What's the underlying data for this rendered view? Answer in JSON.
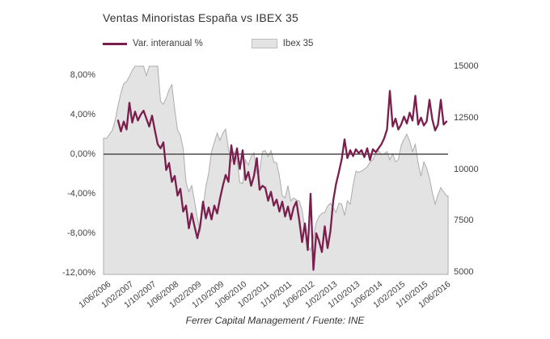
{
  "title": "Ventas Minoristas España vs IBEX 35",
  "footer": "Ferrer Capital Management / Fuente: INE",
  "colors": {
    "line": "#7A1F4D",
    "area_fill": "#E3E3E3",
    "area_border": "#ACACAC",
    "zero_line": "#4D4D4D",
    "text": "#404040"
  },
  "legend": {
    "items": [
      {
        "label": "Var. interanual %",
        "swatch": "line"
      },
      {
        "label": "Ibex 35",
        "swatch": "area"
      }
    ]
  },
  "chart_data": {
    "type": "line+area",
    "title": "Ventas Minoristas España vs IBEX 35",
    "x_tick_labels": [
      "1/06/2006",
      "1/02/2007",
      "1/10/2007",
      "1/06/2008",
      "1/02/2009",
      "1/10/2009",
      "1/06/2010",
      "1/02/2011",
      "1/10/2011",
      "1/06/2012",
      "1/02/2013",
      "1/10/2013",
      "1/06/2014",
      "1/02/2015",
      "1/10/2015",
      "1/06/2016"
    ],
    "y_left_axis": {
      "unit": "percent",
      "range": [
        -12.2,
        8.9
      ],
      "ticks": [
        {
          "label": "8,00%",
          "value": 8
        },
        {
          "label": "4,00%",
          "value": 4
        },
        {
          "label": "0,00%",
          "value": 0
        },
        {
          "label": "-4,00%",
          "value": -4
        },
        {
          "label": "-8,00%",
          "value": -8
        },
        {
          "label": "-12,00%",
          "value": -12
        }
      ]
    },
    "y_right_axis": {
      "unit": "index points",
      "range": [
        5000,
        15090
      ],
      "ticks": [
        {
          "label": "15000",
          "value": 15000
        },
        {
          "label": "12500",
          "value": 12500
        },
        {
          "label": "10000",
          "value": 10000
        },
        {
          "label": "7500",
          "value": 7500
        },
        {
          "label": "5000",
          "value": 5000
        }
      ]
    },
    "zero_line": true,
    "legend_position": "top-left",
    "series": [
      {
        "name": "Var. interanual %",
        "type": "line",
        "axis": "left",
        "color": "#7A1F4D",
        "start_month": "2006-10",
        "frequency": "monthly",
        "values": [
          3.4,
          2.3,
          3.3,
          2.5,
          5.2,
          3.2,
          4.3,
          3.4,
          4.0,
          4.4,
          3.6,
          2.8,
          3.9,
          2.4,
          1.0,
          0.6,
          1.2,
          -1.6,
          -0.9,
          -2.8,
          -2.2,
          -4.2,
          -3.5,
          -5.8,
          -5.2,
          -7.5,
          -6.0,
          -7.3,
          -8.5,
          -7.2,
          -4.8,
          -6.5,
          -5.4,
          -6.6,
          -5.2,
          -6.0,
          -4.5,
          -3.2,
          -2.1,
          -2.8,
          0.9,
          -1.0,
          0.6,
          -1.5,
          0.4,
          -2.6,
          -1.8,
          -3.2,
          -2.2,
          -0.4,
          -3.6,
          -3.2,
          -3.4,
          -4.7,
          -3.8,
          -5.2,
          -4.6,
          -5.8,
          -4.8,
          -6.3,
          -5.3,
          -6.6,
          -5.4,
          -4.8,
          -6.7,
          -8.9,
          -7.0,
          -9.7,
          -4.0,
          -11.7,
          -8.0,
          -8.8,
          -9.9,
          -7.3,
          -9.5,
          -7.8,
          -4.7,
          -3.0,
          -1.8,
          -0.5,
          1.5,
          -0.4,
          0.4,
          -0.2,
          0.5,
          0.1,
          0.4,
          -0.3,
          0.6,
          -0.6,
          0.5,
          0.2,
          0.6,
          1.0,
          1.6,
          2.5,
          6.4,
          2.8,
          3.6,
          2.5,
          3.0,
          3.8,
          3.1,
          4.2,
          3.4,
          5.9,
          3.0,
          3.7,
          2.9,
          3.3,
          5.5,
          3.5,
          2.4,
          3.0,
          5.5,
          3.0,
          3.3
        ]
      },
      {
        "name": "Ibex 35",
        "type": "area",
        "axis": "right",
        "fill": "#E3E3E3",
        "border": "#ACACAC",
        "start_month": "2006-06",
        "frequency": "monthly",
        "values": [
          11500,
          11700,
          11900,
          12400,
          13100,
          13700,
          14150,
          14250,
          14500,
          14800,
          15000,
          15250,
          15300,
          15100,
          14550,
          15150,
          15500,
          15650,
          15050,
          13300,
          13150,
          13450,
          13850,
          14100,
          12900,
          11900,
          11650,
          11000,
          9350,
          8900,
          9200,
          8450,
          7650,
          6950,
          8100,
          9150,
          9800,
          10850,
          11300,
          11750,
          11400,
          11750,
          11950,
          10950,
          10350,
          10850,
          10500,
          9350,
          9300,
          10450,
          10200,
          10600,
          10800,
          9800,
          9900,
          10850,
          10900,
          10600,
          10900,
          10350,
          10300,
          9650,
          8700,
          8600,
          9200,
          8450,
          8600,
          8500,
          8450,
          8000,
          7100,
          6300,
          6050,
          6700,
          7400,
          7700,
          7850,
          7900,
          8200,
          8350,
          8100,
          7900,
          8350,
          8300,
          7750,
          8450,
          8300,
          9200,
          9900,
          9850,
          9900,
          10000,
          10100,
          10350,
          10450,
          10750,
          10900,
          10700,
          10750,
          10850,
          10450,
          10750,
          10350,
          10450,
          11150,
          11450,
          11700,
          11350,
          10850,
          11200,
          10300,
          9650,
          10350,
          10050,
          9550,
          8850,
          8300,
          8750,
          9100,
          8900,
          8700
        ]
      }
    ]
  }
}
